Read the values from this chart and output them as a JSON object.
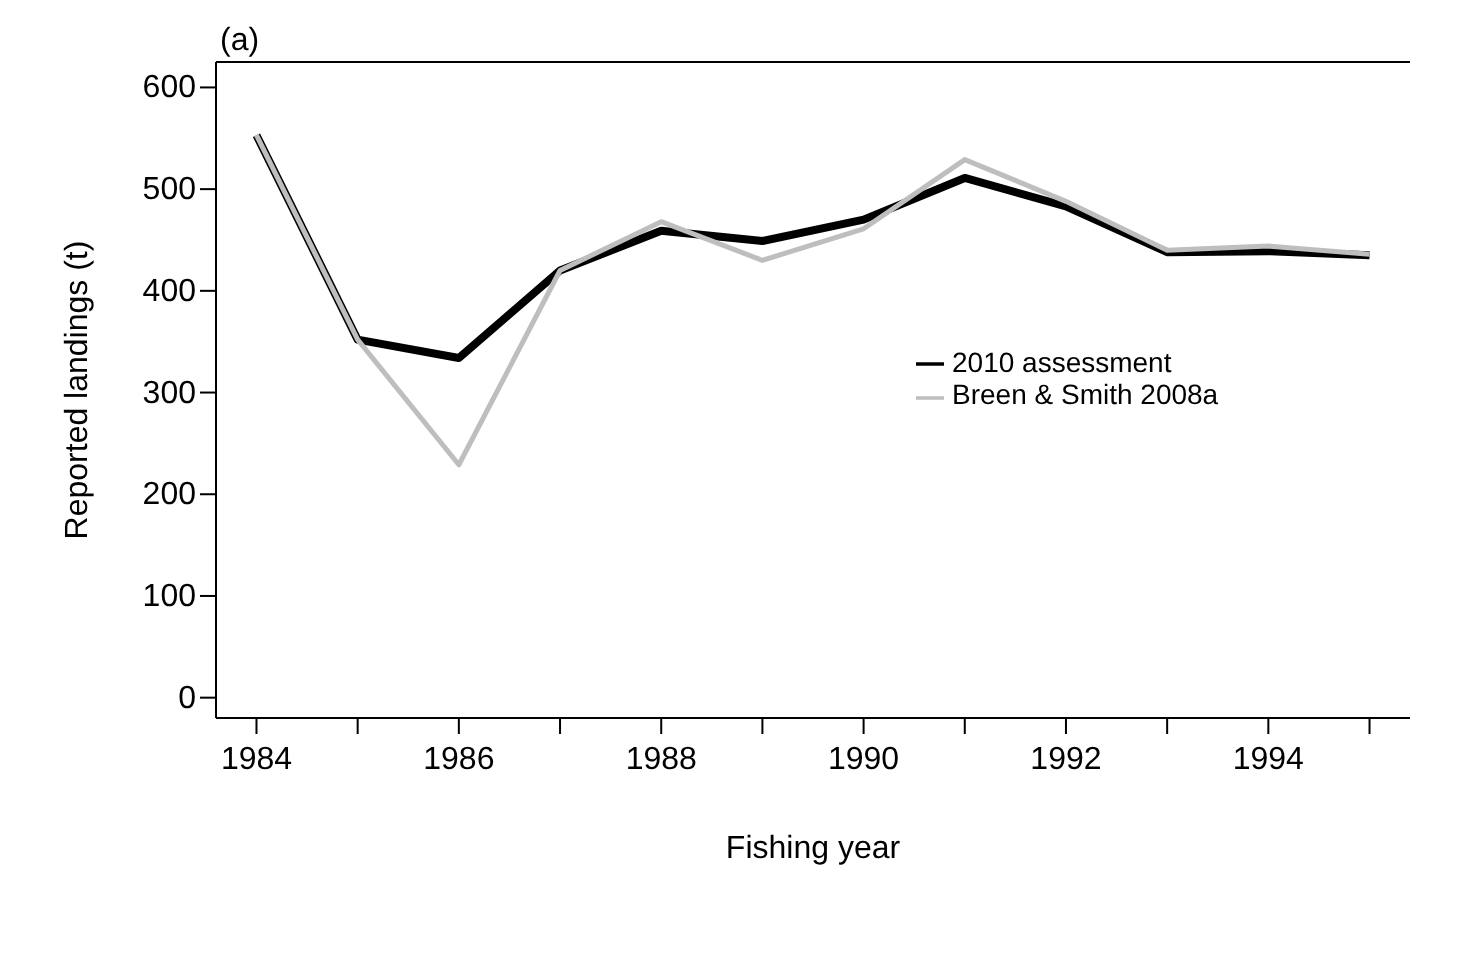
{
  "chart_data": {
    "type": "line",
    "title": "(a)",
    "xlabel": "Fishing year",
    "ylabel": "Reported landings (t)",
    "x": [
      1984,
      1985,
      1986,
      1987,
      1988,
      1989,
      1990,
      1991,
      1992,
      1993,
      1994,
      1995
    ],
    "series": [
      {
        "name": "2010 assessment",
        "color": "#000000",
        "values": [
          553,
          352,
          334,
          420,
          459,
          449,
          470,
          511,
          483,
          438,
          439,
          435
        ]
      },
      {
        "name": "Breen & Smith 2008a",
        "color": "#bebebe",
        "values": [
          553,
          352,
          229,
          420,
          468,
          430,
          461,
          529,
          488,
          440,
          444,
          436
        ]
      }
    ],
    "xlim": [
      1983.6,
      1995.4
    ],
    "ylim": [
      -20,
      625
    ],
    "xticks": [
      1984,
      {
        "value": 1985,
        "label": null
      },
      1986,
      {
        "value": 1987,
        "label": null
      },
      1988,
      {
        "value": 1989,
        "label": null
      },
      1990,
      {
        "value": 1991,
        "label": null
      },
      1992,
      {
        "value": 1993,
        "label": null
      },
      1994,
      {
        "value": 1995,
        "label": null
      }
    ],
    "yticks": [
      0,
      100,
      200,
      300,
      400,
      500,
      600
    ],
    "grid": false,
    "legend": "right",
    "marker": "none",
    "line_style": "solid"
  }
}
